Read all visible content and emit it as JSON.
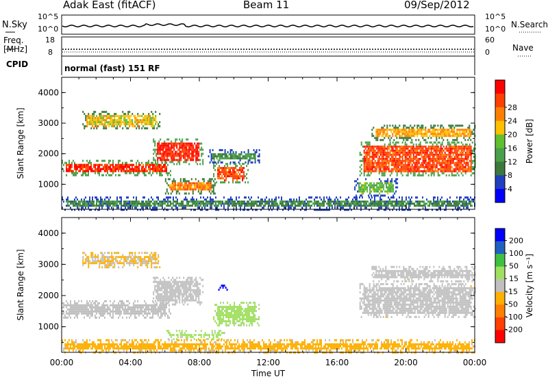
{
  "header": {
    "station": "Adak East (fitACF)",
    "beam": "Beam 11",
    "date": "09/Sep/2012"
  },
  "status_panel": {
    "left_label": "N.Sky",
    "right_label": "N.Search",
    "left_ticks": [
      "10^5",
      "10^0"
    ],
    "right_ticks": [
      "10^5",
      "10^0"
    ]
  },
  "freq_panel": {
    "left_label_1": "Freq.",
    "left_label_2": "[MHz]",
    "right_label": "Nave",
    "left_ticks": [
      "18",
      "8"
    ],
    "right_ticks": [
      "60",
      "0"
    ]
  },
  "cpid_panel": {
    "left_label": "CPID",
    "text": "normal (fast) 151 RF"
  },
  "x_axis": {
    "ticks": [
      "00:00",
      "04:00",
      "08:00",
      "12:00",
      "16:00",
      "20:00",
      "00:00"
    ],
    "title": "Time UT"
  },
  "colors": {
    "power": [
      "#0000ff",
      "#2040c0",
      "#3b7a3b",
      "#4aa04a",
      "#60c030",
      "#ffc000",
      "#ff8000",
      "#ff4000",
      "#ff0000"
    ],
    "velocity": [
      "#ff0000",
      "#ff4000",
      "#ff8000",
      "#ffb000",
      "#c0c0c0",
      "#a0e060",
      "#40c040",
      "#2060c0",
      "#0000ff"
    ]
  },
  "chart_data": [
    {
      "type": "heatmap",
      "panel": "power",
      "ylabel": "Slant Range [km]",
      "ylim": [
        180,
        4500
      ],
      "yticks": [
        "1000",
        "2000",
        "3000",
        "4000"
      ],
      "xlim_hours": [
        0,
        24
      ],
      "colorbar": {
        "label": "Power [dB]",
        "ticks": [
          "4",
          "8",
          "12",
          "16",
          "20",
          "24",
          "28"
        ],
        "range": [
          0,
          30
        ]
      },
      "regions": [
        {
          "t0": 0.0,
          "t1": 6.3,
          "r0": 1300,
          "r1": 1800,
          "value": 26
        },
        {
          "t0": 5.3,
          "t1": 8.2,
          "r0": 1650,
          "r1": 2500,
          "value": 27
        },
        {
          "t0": 1.2,
          "t1": 5.7,
          "r0": 2800,
          "r1": 3400,
          "value": 18
        },
        {
          "t0": 6.0,
          "t1": 8.9,
          "r0": 700,
          "r1": 1200,
          "value": 22
        },
        {
          "t0": 8.8,
          "t1": 10.8,
          "r0": 1050,
          "r1": 1700,
          "value": 25
        },
        {
          "t0": 8.5,
          "t1": 11.5,
          "r0": 1700,
          "r1": 2150,
          "value": 10
        },
        {
          "t0": 17.3,
          "t1": 24.0,
          "r0": 1300,
          "r1": 2400,
          "value": 25
        },
        {
          "t0": 18.0,
          "t1": 24.0,
          "r0": 2450,
          "r1": 2950,
          "value": 20
        },
        {
          "t0": 17.0,
          "t1": 19.5,
          "r0": 600,
          "r1": 1200,
          "value": 14
        },
        {
          "t0": 0.0,
          "t1": 24.0,
          "r0": 180,
          "r1": 600,
          "value": 9
        }
      ]
    },
    {
      "type": "heatmap",
      "panel": "velocity",
      "ylabel": "Slant Range [km]",
      "ylim": [
        180,
        4500
      ],
      "yticks": [
        "1000",
        "2000",
        "3000",
        "4000"
      ],
      "xlim_hours": [
        0,
        24
      ],
      "colorbar": {
        "label": "Velocity [m s⁻¹]",
        "ticks": [
          "200",
          "100",
          "50",
          "15",
          "-15",
          "-50",
          "-100",
          "-200"
        ],
        "range": [
          -250,
          250
        ]
      },
      "regions": [
        {
          "t0": 0.0,
          "t1": 6.3,
          "r0": 1300,
          "r1": 1850,
          "value": 0
        },
        {
          "t0": 5.3,
          "t1": 8.2,
          "r0": 1700,
          "r1": 2600,
          "value": 0
        },
        {
          "t0": 1.2,
          "t1": 5.7,
          "r0": 2900,
          "r1": 3400,
          "value": -30
        },
        {
          "t0": 8.8,
          "t1": 11.5,
          "r0": 1050,
          "r1": 1800,
          "value": 40
        },
        {
          "t0": 6.0,
          "t1": 9.5,
          "r0": 600,
          "r1": 900,
          "value": 45
        },
        {
          "t0": 9.1,
          "t1": 9.6,
          "r0": 2100,
          "r1": 2350,
          "value": 220
        },
        {
          "t0": 17.3,
          "t1": 24.0,
          "r0": 1300,
          "r1": 2400,
          "value": 0
        },
        {
          "t0": 18.0,
          "t1": 24.0,
          "r0": 2450,
          "r1": 2950,
          "value": 0
        },
        {
          "t0": 0.0,
          "t1": 24.0,
          "r0": 180,
          "r1": 600,
          "value": -40
        }
      ]
    }
  ]
}
